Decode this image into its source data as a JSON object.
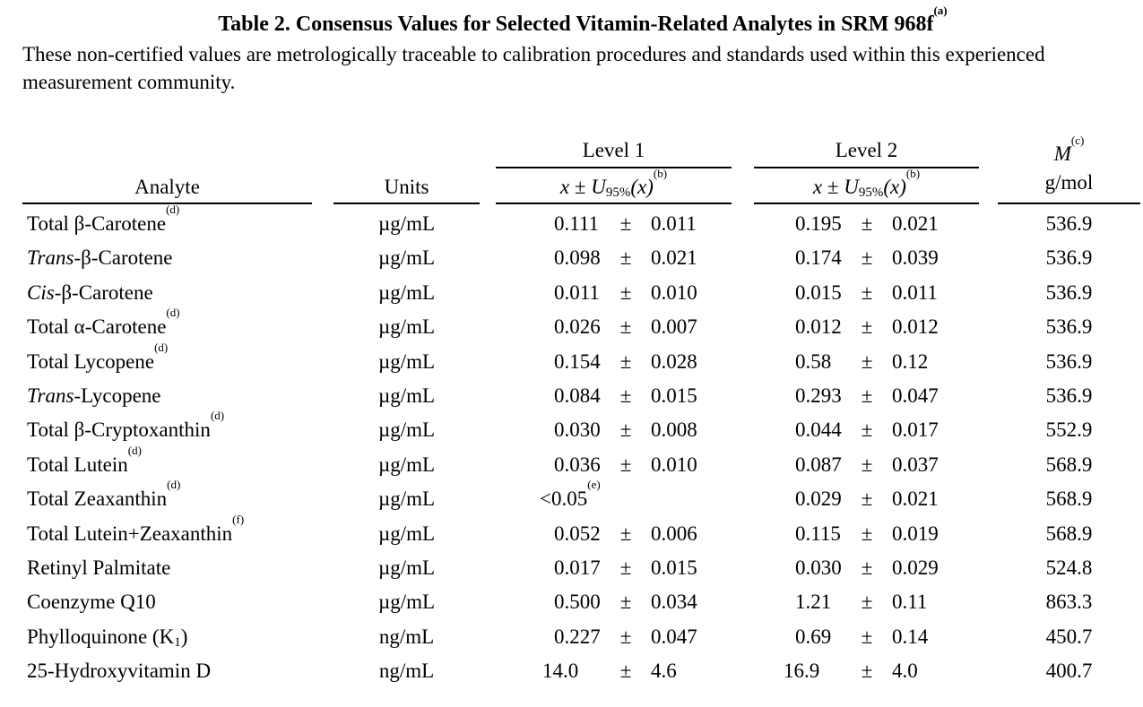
{
  "title": "Table 2.  Consensus Values for Selected Vitamin-Related Analytes in SRM 968f",
  "title_note": "(a)",
  "intro": "These non-certified values are metrologically traceable to calibration procedures and standards used within this experienced measurement community.",
  "headers": {
    "analyte": "Analyte",
    "units": "Units",
    "level1": "Level 1",
    "level2": "Level 2",
    "x_symbol": "x",
    "pm": "±",
    "u_symbol": "U",
    "u_subscript": "95%",
    "u_arg": "(x)",
    "u_note": "(b)",
    "mw_symbol": "M",
    "mw_note": "(c)",
    "mw_units": "g/mol"
  },
  "rows": [
    {
      "prefix": "Total β-Carotene",
      "italic": "",
      "suffix": "",
      "sub": "",
      "tail": "",
      "note": "(d)",
      "units": "µg/mL",
      "l1_val": "0.111",
      "l1_pm": "±",
      "l1_unc": "0.011",
      "l1_note": "",
      "l2_val": "0.195",
      "l2_pm": "±",
      "l2_unc": "0.021",
      "mw": "536.9"
    },
    {
      "prefix": "",
      "italic": "Trans",
      "suffix": "-β-Carotene",
      "sub": "",
      "tail": "",
      "note": "",
      "units": "µg/mL",
      "l1_val": "0.098",
      "l1_pm": "±",
      "l1_unc": "0.021",
      "l1_note": "",
      "l2_val": "0.174",
      "l2_pm": "±",
      "l2_unc": "0.039",
      "mw": "536.9"
    },
    {
      "prefix": "",
      "italic": "Cis",
      "suffix": "-β-Carotene",
      "sub": "",
      "tail": "",
      "note": "",
      "units": "µg/mL",
      "l1_val": "0.011",
      "l1_pm": "±",
      "l1_unc": "0.010",
      "l1_note": "",
      "l2_val": "0.015",
      "l2_pm": "±",
      "l2_unc": "0.011",
      "mw": "536.9"
    },
    {
      "prefix": "Total α-Carotene",
      "italic": "",
      "suffix": "",
      "sub": "",
      "tail": "",
      "note": "(d)",
      "units": "µg/mL",
      "l1_val": "0.026",
      "l1_pm": "±",
      "l1_unc": "0.007",
      "l1_note": "",
      "l2_val": "0.012",
      "l2_pm": "±",
      "l2_unc": "0.012",
      "mw": "536.9"
    },
    {
      "prefix": "Total Lycopene",
      "italic": "",
      "suffix": "",
      "sub": "",
      "tail": "",
      "note": "(d)",
      "units": "µg/mL",
      "l1_val": "0.154",
      "l1_pm": "±",
      "l1_unc": "0.028",
      "l1_note": "",
      "l2_val": "0.58",
      "l2_pm": "±",
      "l2_unc": "0.12",
      "mw": "536.9"
    },
    {
      "prefix": "",
      "italic": "Trans",
      "suffix": "-Lycopene",
      "sub": "",
      "tail": "",
      "note": "",
      "units": "µg/mL",
      "l1_val": "0.084",
      "l1_pm": "±",
      "l1_unc": "0.015",
      "l1_note": "",
      "l2_val": "0.293",
      "l2_pm": "±",
      "l2_unc": "0.047",
      "mw": "536.9"
    },
    {
      "prefix": "Total β-Cryptoxanthin",
      "italic": "",
      "suffix": "",
      "sub": "",
      "tail": "",
      "note": "(d)",
      "units": "µg/mL",
      "l1_val": "0.030",
      "l1_pm": "±",
      "l1_unc": "0.008",
      "l1_note": "",
      "l2_val": "0.044",
      "l2_pm": "±",
      "l2_unc": "0.017",
      "mw": "552.9"
    },
    {
      "prefix": "Total Lutein",
      "italic": "",
      "suffix": "",
      "sub": "",
      "tail": "",
      "note": "(d)",
      "units": "µg/mL",
      "l1_val": "0.036",
      "l1_pm": "±",
      "l1_unc": "0.010",
      "l1_note": "",
      "l2_val": "0.087",
      "l2_pm": "±",
      "l2_unc": "0.037",
      "mw": "568.9"
    },
    {
      "prefix": "Total Zeaxanthin",
      "italic": "",
      "suffix": "",
      "sub": "",
      "tail": "",
      "note": "(d)",
      "units": "µg/mL",
      "l1_val": "<0.05",
      "l1_pm": "",
      "l1_unc": "",
      "l1_note": "(e)",
      "l2_val": "0.029",
      "l2_pm": "±",
      "l2_unc": "0.021",
      "mw": "568.9"
    },
    {
      "prefix": "Total Lutein+Zeaxanthin",
      "italic": "",
      "suffix": "",
      "sub": "",
      "tail": "",
      "note": "(f)",
      "units": "µg/mL",
      "l1_val": "0.052",
      "l1_pm": "±",
      "l1_unc": "0.006",
      "l1_note": "",
      "l2_val": "0.115",
      "l2_pm": "±",
      "l2_unc": "0.019",
      "mw": "568.9"
    },
    {
      "prefix": "Retinyl Palmitate",
      "italic": "",
      "suffix": "",
      "sub": "",
      "tail": "",
      "note": "",
      "units": "µg/mL",
      "l1_val": "0.017",
      "l1_pm": "±",
      "l1_unc": "0.015",
      "l1_note": "",
      "l2_val": "0.030",
      "l2_pm": "±",
      "l2_unc": "0.029",
      "mw": "524.8"
    },
    {
      "prefix": "Coenzyme Q10",
      "italic": "",
      "suffix": "",
      "sub": "",
      "tail": "",
      "note": "",
      "units": "µg/mL",
      "l1_val": "0.500",
      "l1_pm": "±",
      "l1_unc": "0.034",
      "l1_note": "",
      "l2_val": "1.21",
      "l2_pm": "±",
      "l2_unc": "0.11",
      "mw": "863.3"
    },
    {
      "prefix": "Phylloquinone (K",
      "italic": "",
      "suffix": "",
      "sub": "1",
      "tail": ")",
      "note": "",
      "units": "ng/mL",
      "l1_val": "0.227",
      "l1_pm": "±",
      "l1_unc": "0.047",
      "l1_note": "",
      "l2_val": "0.69",
      "l2_pm": "±",
      "l2_unc": "0.14",
      "mw": "450.7"
    },
    {
      "prefix": "25-Hydroxyvitamin D",
      "italic": "",
      "suffix": "",
      "sub": "",
      "tail": "",
      "note": "",
      "units": "ng/mL",
      "l1_val": "14.0",
      "l1_pm": "±",
      "l1_unc": "4.6",
      "l1_note": "",
      "l2_val": "16.9",
      "l2_pm": "±",
      "l2_unc": "4.0",
      "mw": "400.7"
    }
  ]
}
